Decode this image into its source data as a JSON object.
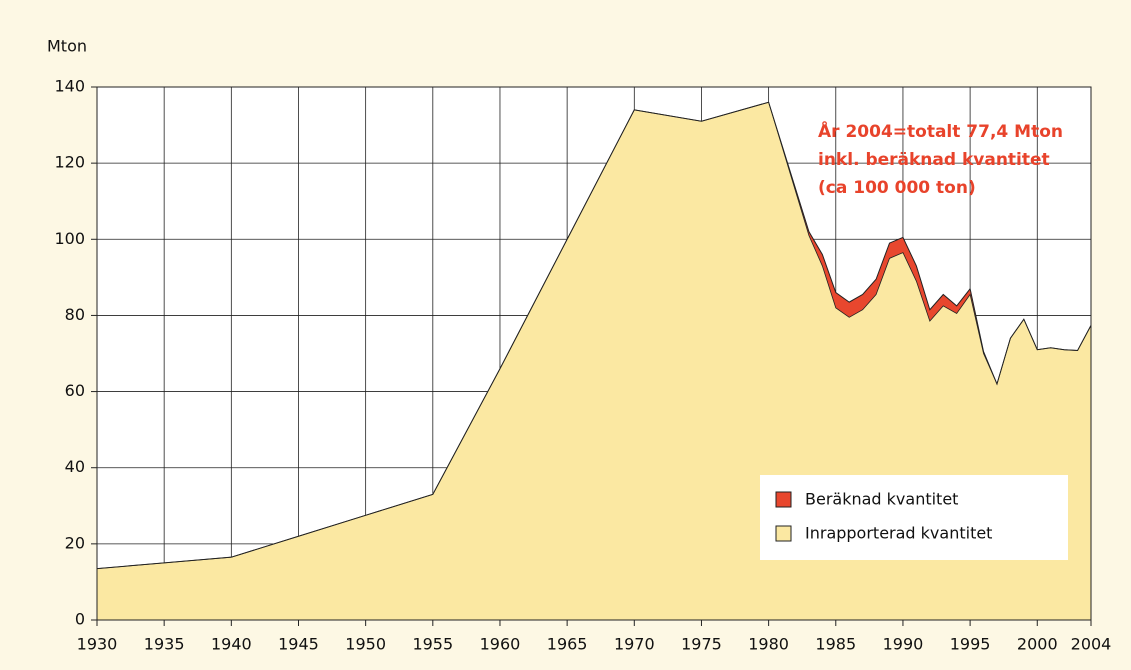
{
  "chart_data": {
    "type": "stacked_area",
    "ylabel": "Mton",
    "annotation": [
      "År 2004=totalt 77,4 Mton",
      "inkl. beräknad kvantitet",
      "(ca 100 000 ton)"
    ],
    "x": [
      1930,
      1935,
      1940,
      1945,
      1950,
      1955,
      1960,
      1965,
      1970,
      1975,
      1980,
      1983,
      1984,
      1985,
      1986,
      1987,
      1988,
      1989,
      1990,
      1991,
      1992,
      1993,
      1994,
      1995,
      1996,
      1997,
      1998,
      1999,
      2000,
      2001,
      2002,
      2003,
      2004
    ],
    "series": [
      {
        "name": "Inrapporterad kvantitet",
        "color": "#fbe8a2",
        "values": [
          13.5,
          15,
          16.5,
          22,
          27.5,
          33,
          66,
          100,
          134,
          131,
          136,
          101,
          93,
          82,
          79.5,
          81.5,
          85.5,
          95,
          96.5,
          89,
          78.5,
          82.5,
          80.5,
          85.5,
          70,
          62,
          74,
          79,
          71,
          71.5,
          71,
          70.8,
          77.4
        ]
      },
      {
        "name": "Beräknad kvantitet",
        "color": "#e8472e",
        "values": [
          0,
          0,
          0,
          0,
          0,
          0,
          0,
          0,
          0,
          0,
          0,
          1,
          3,
          4,
          4,
          4,
          4,
          4,
          4,
          4,
          3,
          3,
          2,
          1.5,
          0.5,
          0,
          0,
          0,
          0,
          0,
          0,
          0,
          0
        ]
      }
    ],
    "xlim": [
      1930,
      2004
    ],
    "xticks": [
      1930,
      1935,
      1940,
      1945,
      1950,
      1955,
      1960,
      1965,
      1970,
      1975,
      1980,
      1985,
      1990,
      1995,
      2000,
      2004
    ],
    "ylim": [
      0,
      140
    ],
    "yticks": [
      0,
      20,
      40,
      60,
      80,
      100,
      120,
      140
    ],
    "grid": true,
    "legend": "lower right"
  }
}
